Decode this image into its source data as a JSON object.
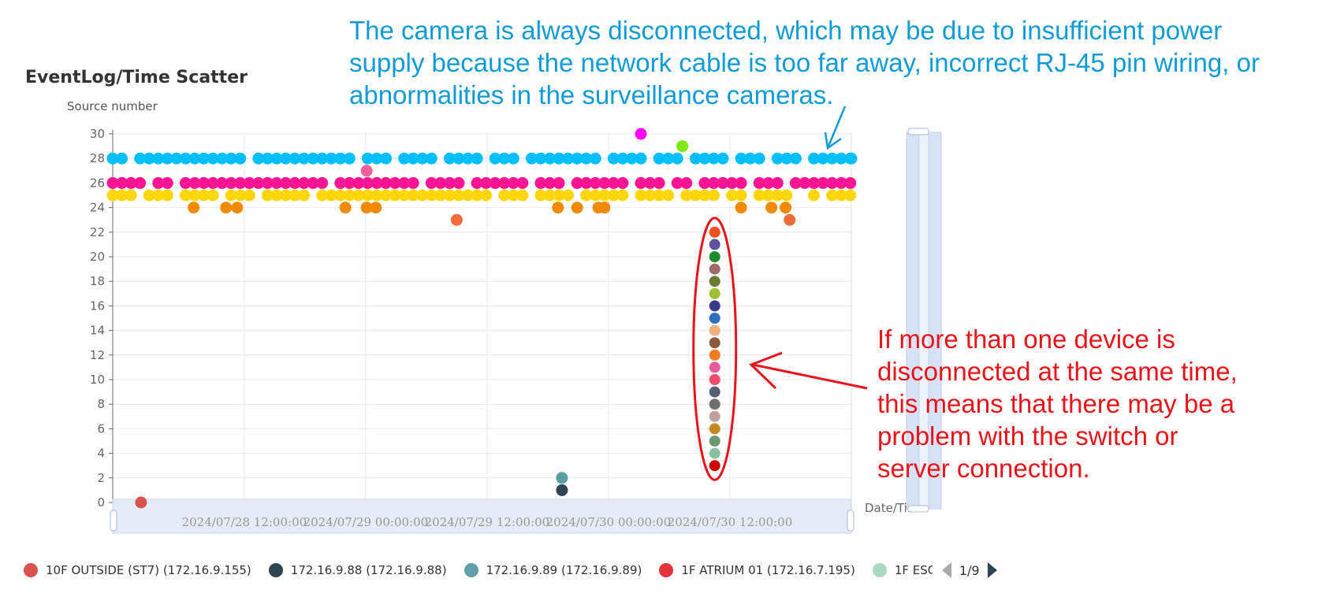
{
  "chart_data": {
    "type": "scatter",
    "title": "EventLog/Time Scatter",
    "ylabel": "Source number",
    "xlabel": "Date/Time",
    "ylim": [
      0,
      30
    ],
    "yticks": [
      0,
      2,
      4,
      6,
      8,
      10,
      12,
      14,
      16,
      18,
      20,
      22,
      24,
      26,
      28,
      30
    ],
    "xlim": [
      "2024/07/27 23:00:00",
      "2024/07/31 00:00:00"
    ],
    "xticks": [
      "2024/07/28 12:00:00",
      "2024/07/29 00:00:00",
      "2024/07/29 12:00:00",
      "2024/07/30 00:00:00",
      "2024/07/30 12:00:00"
    ],
    "grid": true,
    "series": [
      {
        "color": "#00bfff",
        "y": 28,
        "from_hours": 0,
        "to_hours": 73.5,
        "gap_hours": [
          2.0,
          13.5,
          24.2,
          28.3,
          32.0,
          36.8,
          40.2,
          48.5,
          53.3,
          57.0,
          60.8,
          64.5,
          68.0
        ],
        "extra": [
          [
            73.0,
            28
          ]
        ]
      },
      {
        "color": "#ff1493",
        "y": 26,
        "from_hours": 0,
        "to_hours": 73.5,
        "gap_hours": [
          3.7,
          6.2,
          21.2,
          30.2,
          35.3,
          41.0,
          44.6,
          51.2,
          54.5,
          57.8,
          63.4,
          66.8
        ]
      },
      {
        "color": "#ffd700",
        "y": 25,
        "from_hours": 0,
        "to_hours": 73.5,
        "gap_hours": [
          2.3,
          6.5,
          11.0,
          14.8,
          19.5,
          38.0,
          41.8,
          46.3,
          51.4,
          55.8,
          60.4,
          62.8,
          67.2,
          68.6,
          69.8
        ]
      },
      {
        "color": "#f08a00",
        "y": 24,
        "points_hours": [
          8.0,
          11.2,
          12.3,
          23.0,
          25.1,
          26.0,
          44.0,
          45.9,
          48.0,
          48.6,
          62.1,
          65.1,
          66.5
        ]
      },
      {
        "color": "#f06a3a",
        "y": 23,
        "points_hours": [
          34.0,
          66.9
        ]
      },
      {
        "color": "#f0609a",
        "y": 27,
        "points_hours": [
          25.1
        ]
      },
      {
        "color": "#ff00ff",
        "y": 30,
        "points_hours": [
          52.2
        ]
      },
      {
        "color": "#7fe817",
        "y": 29,
        "points_hours": [
          56.3
        ]
      },
      {
        "name": "10F OUTSIDE (ST7) (172.16.9.155)",
        "color": "#d9534f",
        "y": 0,
        "points_hours": [
          2.8
        ]
      },
      {
        "name": "172.16.9.88 (172.16.9.88)",
        "color": "#2f4554",
        "y": 1,
        "points_hours": [
          44.4
        ]
      },
      {
        "name": "172.16.9.89 (172.16.9.89)",
        "color": "#5c9ea6",
        "y": 2,
        "points_hours": [
          44.4
        ]
      },
      {
        "color": "multi",
        "y_from": 3,
        "y_to": 22,
        "points_hours": [
          59.5
        ],
        "colors": [
          "#cc0000",
          "#88c0a0",
          "#6a9a74",
          "#c28a20",
          "#c0a09a",
          "#6e6e6e",
          "#556070",
          "#ee4a6a",
          "#e85a9a",
          "#ef7a20",
          "#8a5a3a",
          "#f0b080",
          "#2e6cbf",
          "#3a3a8a",
          "#a0c030",
          "#667a30",
          "#a06a6a",
          "#1a8a2a",
          "#6050a0",
          "#f05020"
        ]
      }
    ],
    "legend": {
      "placement": "bottom",
      "items": [
        {
          "label": "10F OUTSIDE (ST7) (172.16.9.155)",
          "color": "#d9534f"
        },
        {
          "label": "172.16.9.88 (172.16.9.88)",
          "color": "#2f4554"
        },
        {
          "label": "172.16.9.89 (172.16.9.89)",
          "color": "#61a0a8"
        },
        {
          "label": "1F ATRIUM 01 (172.16.7.195)",
          "color": "#e7343c"
        },
        {
          "label": "1F ESC",
          "color": "#a8d8c0"
        }
      ],
      "page": "1/9"
    }
  },
  "annotations": {
    "camera_note": "The camera is always disconnected, which may be due to insufficient power supply because the network cable is too far away, incorrect RJ-45 pin wiring, or abnormalities in the surveillance cameras.",
    "switch_note": "If more than one device is disconnected at the same time, this means that there may be a problem with the switch or server connection.",
    "camera_note_color": "#0f9bd7",
    "switch_note_color": "#e8141a"
  }
}
